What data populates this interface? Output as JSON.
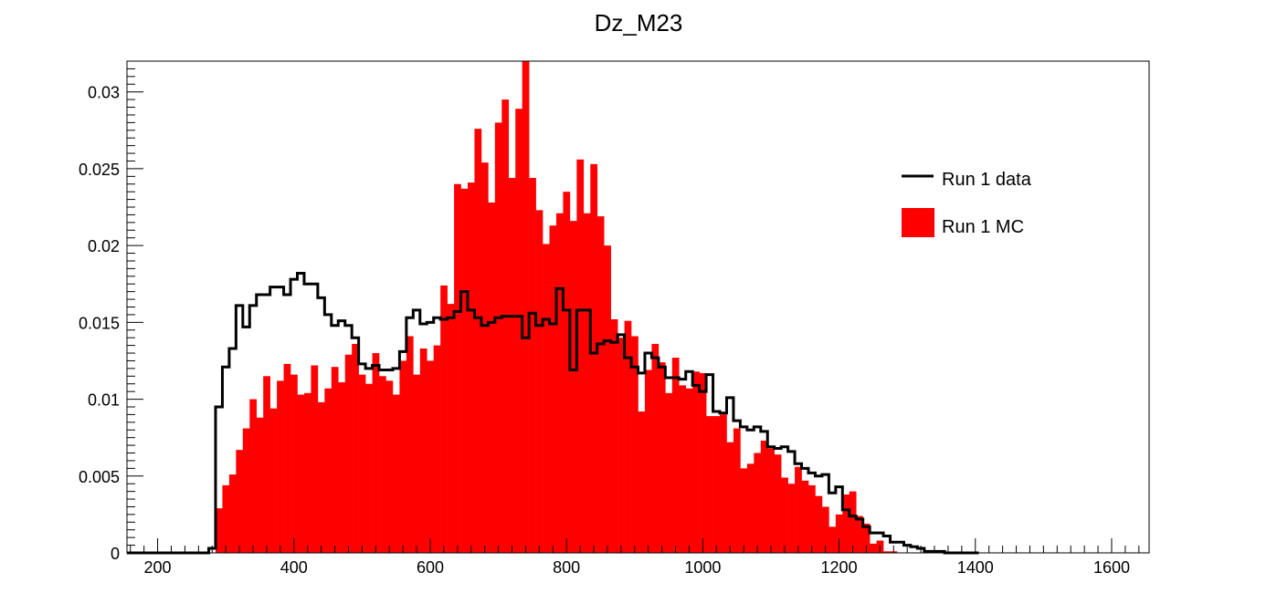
{
  "chart_data": {
    "type": "histogram",
    "title": "Dz_M23",
    "xlabel": "",
    "ylabel": "",
    "xlim": [
      155,
      1655
    ],
    "ylim": [
      0,
      0.032
    ],
    "x_ticks": [
      200,
      400,
      600,
      800,
      1000,
      1200,
      1400,
      1600
    ],
    "y_ticks": [
      0,
      0.005,
      0.01,
      0.015,
      0.02,
      0.025,
      0.03
    ],
    "y_tick_labels": [
      "0",
      "0.005",
      "0.01",
      "0.015",
      "0.02",
      "0.025",
      "0.03"
    ],
    "legend_position": "top-right",
    "bin_edges_start": 155,
    "bin_width": 10,
    "series": [
      {
        "name": "Run 1 data",
        "style": "step-line",
        "color": "#000000",
        "values": [
          0,
          0,
          0,
          0,
          0,
          0,
          0,
          0,
          0,
          0,
          0,
          0,
          0.0003,
          0.0095,
          0.0121,
          0.0133,
          0.0161,
          0.0147,
          0.0161,
          0.0168,
          0.0168,
          0.0173,
          0.0173,
          0.0168,
          0.0178,
          0.0182,
          0.0175,
          0.0175,
          0.0166,
          0.0155,
          0.0148,
          0.0151,
          0.0148,
          0.014,
          0.0123,
          0.012,
          0.0122,
          0.0119,
          0.0119,
          0.012,
          0.0131,
          0.0153,
          0.0158,
          0.0149,
          0.015,
          0.0153,
          0.0152,
          0.0153,
          0.0157,
          0.017,
          0.0158,
          0.0153,
          0.0148,
          0.015,
          0.0153,
          0.0154,
          0.0154,
          0.0154,
          0.014,
          0.0156,
          0.0148,
          0.0152,
          0.0149,
          0.0172,
          0.0158,
          0.0119,
          0.0158,
          0.0158,
          0.013,
          0.0136,
          0.0138,
          0.0137,
          0.0142,
          0.0127,
          0.0121,
          0.0117,
          0.013,
          0.0127,
          0.0121,
          0.0114,
          0.0114,
          0.0113,
          0.0118,
          0.0109,
          0.0105,
          0.0116,
          0.0092,
          0.0091,
          0.0101,
          0.0086,
          0.0082,
          0.008,
          0.0082,
          0.0079,
          0.0069,
          0.0068,
          0.0069,
          0.0066,
          0.0058,
          0.0055,
          0.0052,
          0.005,
          0.0051,
          0.0039,
          0.0043,
          0.0028,
          0.0024,
          0.0022,
          0.0017,
          0.0013,
          0.0013,
          0.0011,
          0.0007,
          0.0007,
          0.0005,
          0.0004,
          0.0003,
          0.0001,
          0.0001,
          0.0001,
          0,
          0,
          0,
          0,
          0
        ]
      },
      {
        "name": "Run 1 MC",
        "style": "filled-bars",
        "color": "#ff0000",
        "values": [
          0,
          0,
          0,
          0,
          0,
          0,
          0,
          0,
          0,
          0,
          0,
          0,
          0,
          0.0029,
          0.0044,
          0.0051,
          0.0067,
          0.0081,
          0.01,
          0.0088,
          0.0115,
          0.0094,
          0.0112,
          0.0123,
          0.0116,
          0.0103,
          0.0104,
          0.0122,
          0.0098,
          0.0107,
          0.0121,
          0.0111,
          0.0129,
          0.0136,
          0.0116,
          0.011,
          0.013,
          0.0115,
          0.0112,
          0.0103,
          0.0125,
          0.0141,
          0.0116,
          0.0133,
          0.0125,
          0.0135,
          0.0174,
          0.0162,
          0.024,
          0.0237,
          0.0241,
          0.0276,
          0.0254,
          0.0228,
          0.028,
          0.0295,
          0.0244,
          0.0289,
          0.0328,
          0.0244,
          0.0223,
          0.0201,
          0.0213,
          0.0221,
          0.0235,
          0.0216,
          0.0256,
          0.0221,
          0.0253,
          0.0219,
          0.02,
          0.0152,
          0.014,
          0.0151,
          0.0141,
          0.0092,
          0.0119,
          0.0136,
          0.0124,
          0.0104,
          0.0127,
          0.0109,
          0.0107,
          0.0118,
          0.0117,
          0.0089,
          0.0089,
          0.009,
          0.0072,
          0.0081,
          0.0055,
          0.0058,
          0.0065,
          0.0073,
          0.0068,
          0.0064,
          0.0049,
          0.0045,
          0.0056,
          0.0047,
          0.0044,
          0.0037,
          0.003,
          0.0017,
          0.0025,
          0.0038,
          0.004,
          0.0024,
          0.0019,
          0.0006,
          0.0008,
          0.0001,
          0.0001,
          0,
          0,
          0,
          0,
          0
        ]
      }
    ]
  }
}
